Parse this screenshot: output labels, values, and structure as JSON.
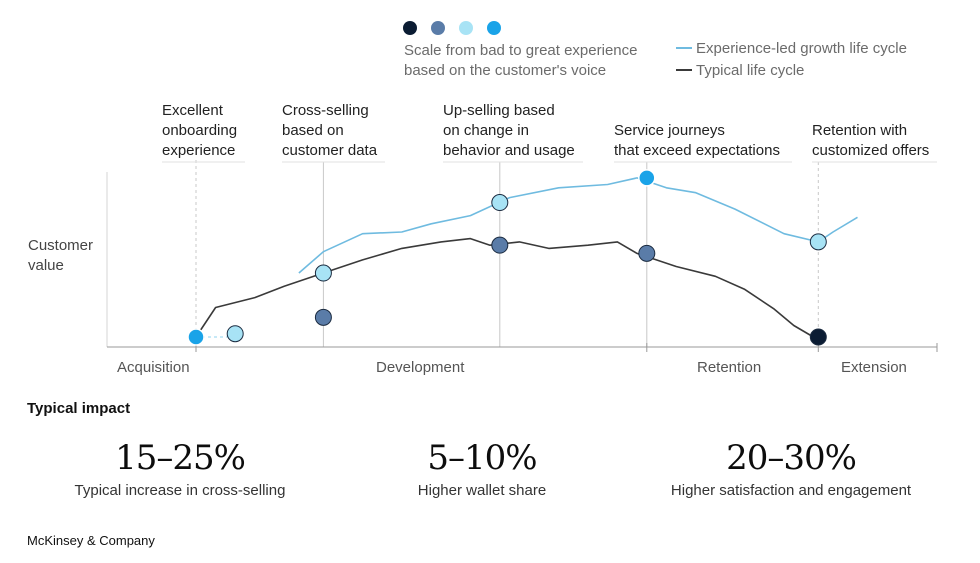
{
  "legend": {
    "scale_text": [
      "Scale from bad to great experience",
      "based on the customer's voice"
    ],
    "scale_colors": [
      "#0b1c33",
      "#5a7ca8",
      "#a8e3f5",
      "#1aa3e8"
    ],
    "lines": [
      {
        "label": "Experience-led growth life cycle",
        "color": "#6fbbe0"
      },
      {
        "label": "Typical life cycle",
        "color": "#3a3a3a"
      }
    ]
  },
  "annotations": [
    [
      "Excellent",
      "onboarding",
      "experience"
    ],
    [
      "Cross-selling",
      "based on",
      "customer data"
    ],
    [
      "Up-selling based",
      "on change in",
      "behavior and usage"
    ],
    [
      "Service journeys",
      "that exceed expectations"
    ],
    [
      "Retention with",
      "customized offers"
    ]
  ],
  "y_axis_label": [
    "Customer",
    "value"
  ],
  "phases": [
    "Acquisition",
    "Development",
    "Retention",
    "Extension"
  ],
  "chart_data": {
    "type": "line",
    "title": "",
    "xlabel": "",
    "ylabel": "Customer value",
    "series": [
      {
        "name": "Experience-led growth life cycle",
        "color": "#6fbbe0",
        "points": [
          [
            0.305,
            0.39
          ],
          [
            0.33,
            0.52
          ],
          [
            0.37,
            0.63
          ],
          [
            0.41,
            0.64
          ],
          [
            0.44,
            0.69
          ],
          [
            0.48,
            0.74
          ],
          [
            0.52,
            0.85
          ],
          [
            0.57,
            0.91
          ],
          [
            0.62,
            0.93
          ],
          [
            0.65,
            0.97
          ],
          [
            0.68,
            0.91
          ],
          [
            0.71,
            0.88
          ],
          [
            0.75,
            0.78
          ],
          [
            0.8,
            0.63
          ],
          [
            0.835,
            0.58
          ],
          [
            0.85,
            0.64
          ],
          [
            0.875,
            0.73
          ]
        ]
      },
      {
        "name": "Typical life cycle",
        "color": "#3a3a3a",
        "points": [
          [
            0.2,
            0.0
          ],
          [
            0.22,
            0.18
          ],
          [
            0.26,
            0.24
          ],
          [
            0.29,
            0.31
          ],
          [
            0.33,
            0.39
          ],
          [
            0.37,
            0.47
          ],
          [
            0.41,
            0.54
          ],
          [
            0.45,
            0.58
          ],
          [
            0.48,
            0.6
          ],
          [
            0.5,
            0.56
          ],
          [
            0.53,
            0.58
          ],
          [
            0.56,
            0.54
          ],
          [
            0.6,
            0.56
          ],
          [
            0.63,
            0.58
          ],
          [
            0.65,
            0.51
          ],
          [
            0.69,
            0.43
          ],
          [
            0.73,
            0.37
          ],
          [
            0.76,
            0.29
          ],
          [
            0.79,
            0.17
          ],
          [
            0.81,
            0.07
          ],
          [
            0.83,
            0.0
          ]
        ]
      }
    ],
    "markers": [
      {
        "x": 0.2,
        "y": 0.0,
        "level": 3
      },
      {
        "x": 0.24,
        "y": 0.02,
        "level": 2
      },
      {
        "x": 0.33,
        "y": 0.39,
        "level": 2
      },
      {
        "x": 0.33,
        "y": 0.12,
        "level": 1
      },
      {
        "x": 0.51,
        "y": 0.82,
        "level": 2
      },
      {
        "x": 0.51,
        "y": 0.56,
        "level": 1
      },
      {
        "x": 0.66,
        "y": 0.97,
        "level": 3
      },
      {
        "x": 0.66,
        "y": 0.51,
        "level": 1
      },
      {
        "x": 0.835,
        "y": 0.58,
        "level": 2
      },
      {
        "x": 0.835,
        "y": 0.0,
        "level": 0
      }
    ],
    "event_x": [
      0.2,
      0.33,
      0.51,
      0.66,
      0.835
    ],
    "phase_boundaries": [
      0.2,
      0.66,
      0.835
    ]
  },
  "impact": {
    "title": "Typical impact",
    "items": [
      {
        "value": "15–25%",
        "label": "Typical increase in cross-selling"
      },
      {
        "value": "5–10%",
        "label": "Higher wallet share"
      },
      {
        "value": "20–30%",
        "label": "Higher satisfaction and engagement"
      }
    ]
  },
  "footer": "McKinsey & Company"
}
